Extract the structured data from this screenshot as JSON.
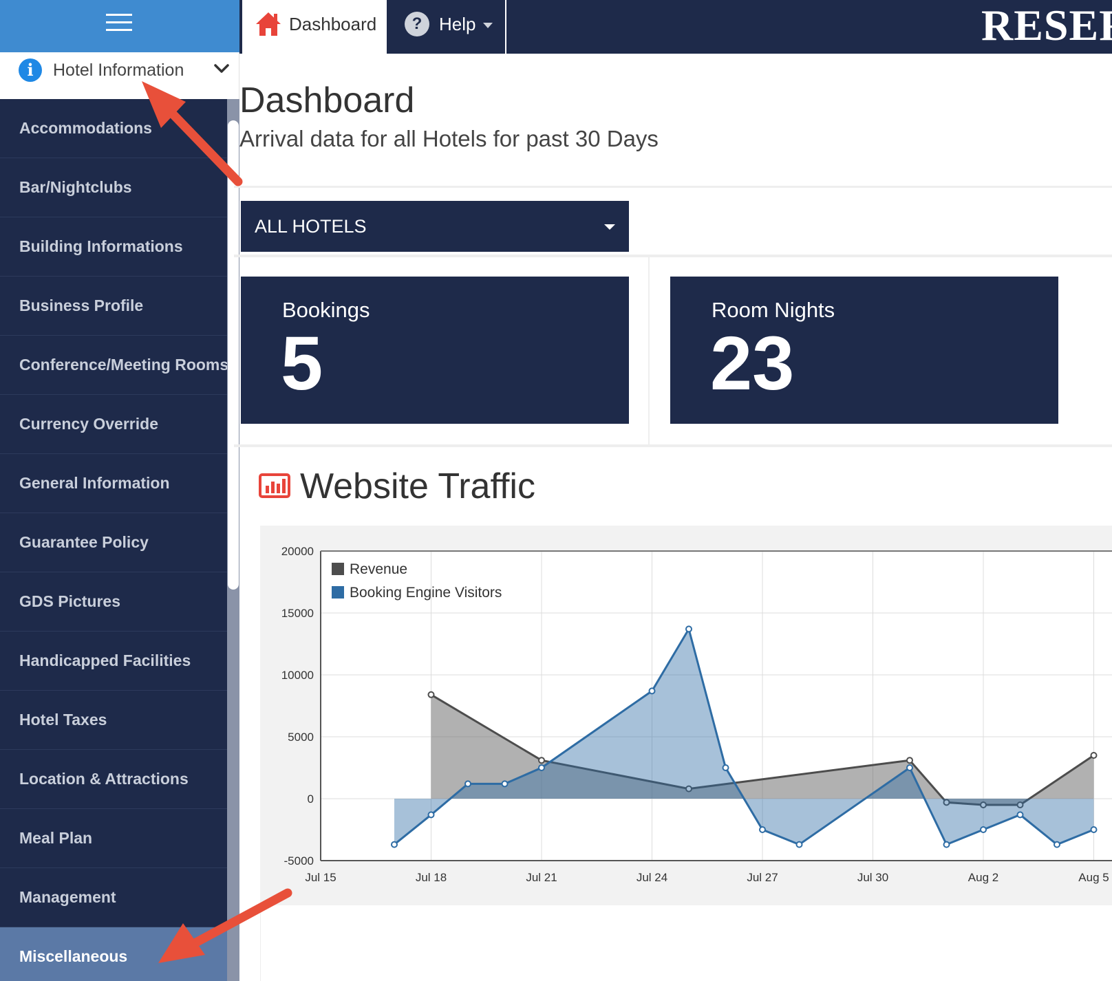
{
  "sidebar": {
    "menu_icon": "hamburger-icon",
    "hotel_info": {
      "icon": "info-icon",
      "label": "Hotel Information",
      "chevron": "chevron-down-icon"
    },
    "items": [
      {
        "label": "Accommodations"
      },
      {
        "label": "Bar/Nightclubs"
      },
      {
        "label": "Building Informations"
      },
      {
        "label": "Business Profile"
      },
      {
        "label": "Conference/Meeting Rooms"
      },
      {
        "label": "Currency Override"
      },
      {
        "label": "General Information"
      },
      {
        "label": "Guarantee Policy"
      },
      {
        "label": "GDS Pictures"
      },
      {
        "label": "Handicapped Facilities"
      },
      {
        "label": "Hotel Taxes"
      },
      {
        "label": "Location & Attractions"
      },
      {
        "label": "Meal Plan"
      },
      {
        "label": "Management"
      },
      {
        "label": "Miscellaneous",
        "active": true
      }
    ]
  },
  "topbar": {
    "dashboard_tab": {
      "icon": "home-icon",
      "label": "Dashboard"
    },
    "help_tab": {
      "icon": "question-circle-icon",
      "label": "Help"
    },
    "brand": "RESER"
  },
  "main": {
    "title": "Dashboard",
    "subtitle": "Arrival data for all Hotels for past 30 Days",
    "hotel_select": {
      "value": "ALL HOTELS"
    },
    "cards": [
      {
        "label": "Bookings",
        "value": "5"
      },
      {
        "label": "Room Nights",
        "value": "23"
      }
    ],
    "traffic": {
      "icon": "bar-chart-icon",
      "title": "Website Traffic"
    }
  },
  "colors": {
    "navy": "#1e2a4a",
    "sidebar_top": "#3f8bd0",
    "active_item": "#5b79a6",
    "revenue": "#4d4d4d",
    "visitors": "#2e6ca4",
    "annotation_arrow": "#e8503a"
  },
  "chart_data": {
    "type": "area",
    "title": "",
    "xlabel": "",
    "ylabel": "",
    "ylim": [
      -5000,
      20000
    ],
    "yticks": [
      20000,
      15000,
      10000,
      5000,
      0,
      -5000
    ],
    "x_tick_labels": [
      "Jul 15",
      "Jul 18",
      "Jul 21",
      "Jul 24",
      "Jul 27",
      "Jul 30",
      "Aug 2",
      "Aug 5"
    ],
    "grid": true,
    "legend": "top-left",
    "series": [
      {
        "name": "Revenue",
        "x": [
          "Jul 18",
          "Jul 21",
          "Jul 25",
          "Jul 31",
          "Aug 1",
          "Aug 2",
          "Aug 3",
          "Aug 5"
        ],
        "values": [
          8400,
          3100,
          800,
          3100,
          -300,
          -500,
          -500,
          3500
        ]
      },
      {
        "name": "Booking Engine Visitors",
        "x": [
          "Jul 17",
          "Jul 18",
          "Jul 19",
          "Jul 20",
          "Jul 21",
          "Jul 24",
          "Jul 25",
          "Jul 26",
          "Jul 27",
          "Jul 28",
          "Jul 31",
          "Aug 1",
          "Aug 2",
          "Aug 3",
          "Aug 4",
          "Aug 5"
        ],
        "values": [
          -3700,
          -1300,
          1200,
          1200,
          2500,
          8700,
          13700,
          2500,
          -2500,
          -3700,
          2500,
          -3700,
          -2500,
          -1300,
          -3700,
          -2500
        ]
      }
    ]
  }
}
